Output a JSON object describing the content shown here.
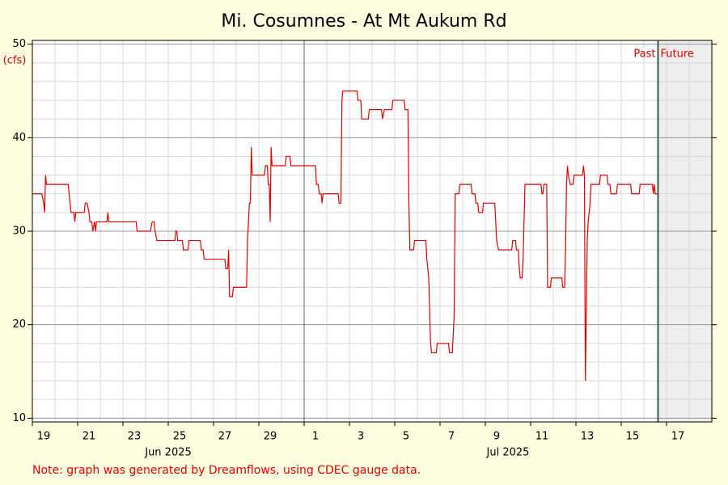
{
  "chart_data": {
    "type": "line",
    "title": "Mi. Cosumnes - At Mt Aukum Rd",
    "y_label": "(cfs)",
    "note": "Note: graph was generated by Dreamflows, using CDEC gauge data.",
    "color": "#e00000",
    "grid": true,
    "ylim": [
      9.6,
      50.4
    ],
    "yticks": [
      10,
      20,
      30,
      40,
      50
    ],
    "xlim": [
      "2025-06-19T00:00",
      "2025-07-19T00:00"
    ],
    "xticks": [
      {
        "value": "2025-06-19",
        "label": "19"
      },
      {
        "value": "2025-06-21",
        "label": "21"
      },
      {
        "value": "2025-06-23",
        "label": "23"
      },
      {
        "value": "2025-06-25",
        "label": "25"
      },
      {
        "value": "2025-06-27",
        "label": "27"
      },
      {
        "value": "2025-06-29",
        "label": "29"
      },
      {
        "value": "2025-07-01",
        "label": "1"
      },
      {
        "value": "2025-07-03",
        "label": "3"
      },
      {
        "value": "2025-07-05",
        "label": "5"
      },
      {
        "value": "2025-07-07",
        "label": "7"
      },
      {
        "value": "2025-07-09",
        "label": "9"
      },
      {
        "value": "2025-07-11",
        "label": "11"
      },
      {
        "value": "2025-07-13",
        "label": "13"
      },
      {
        "value": "2025-07-15",
        "label": "15"
      },
      {
        "value": "2025-07-17",
        "label": "17"
      }
    ],
    "month_labels": [
      {
        "value": "2025-06-25",
        "label": "Jun 2025"
      },
      {
        "value": "2025-07-10",
        "label": "Jul 2025"
      }
    ],
    "now": {
      "value": "2025-07-16T15:00",
      "past_label": "Past",
      "future_label": "Future"
    },
    "x": [
      "2025-06-19T00:00",
      "2025-06-19T10:00",
      "2025-06-19T12:00",
      "2025-06-19T13:00",
      "2025-06-19T14:00",
      "2025-06-19T15:00",
      "2025-06-20T14:00",
      "2025-06-20T15:00",
      "2025-06-20T17:00",
      "2025-06-20T20:00",
      "2025-06-20T21:00",
      "2025-06-20T22:00",
      "2025-06-21T07:00",
      "2025-06-21T08:00",
      "2025-06-21T10:00",
      "2025-06-21T12:00",
      "2025-06-21T13:00",
      "2025-06-21T15:00",
      "2025-06-21T16:00",
      "2025-06-21T18:00",
      "2025-06-21T19:00",
      "2025-06-21T20:00",
      "2025-06-22T07:00",
      "2025-06-22T08:00",
      "2025-06-22T09:00",
      "2025-06-23T14:00",
      "2025-06-23T15:00",
      "2025-06-24T05:00",
      "2025-06-24T07:00",
      "2025-06-24T09:00",
      "2025-06-24T10:00",
      "2025-06-24T12:00",
      "2025-06-25T07:00",
      "2025-06-25T08:00",
      "2025-06-25T09:00",
      "2025-06-25T10:00",
      "2025-06-25T15:00",
      "2025-06-25T16:00",
      "2025-06-25T21:00",
      "2025-06-25T22:00",
      "2025-06-26T10:00",
      "2025-06-26T11:00",
      "2025-06-26T13:00",
      "2025-06-26T14:00",
      "2025-06-27T12:00",
      "2025-06-27T13:00",
      "2025-06-27T15:00",
      "2025-06-27T16:00",
      "2025-06-27T17:00",
      "2025-06-27T20:00",
      "2025-06-27T21:00",
      "2025-06-28T11:00",
      "2025-06-28T12:00",
      "2025-06-28T14:00",
      "2025-06-28T15:00",
      "2025-06-28T16:00",
      "2025-06-28T17:00",
      "2025-06-29T06:00",
      "2025-06-29T07:00",
      "2025-06-29T09:00",
      "2025-06-29T10:00",
      "2025-06-29T11:00",
      "2025-06-29T12:00",
      "2025-06-29T13:00",
      "2025-06-29T14:00",
      "2025-06-30T04:00",
      "2025-06-30T05:00",
      "2025-06-30T09:00",
      "2025-06-30T10:00",
      "2025-07-01T12:00",
      "2025-07-01T13:00",
      "2025-07-01T15:00",
      "2025-07-01T16:00",
      "2025-07-01T18:00",
      "2025-07-01T19:00",
      "2025-07-01T20:00",
      "2025-07-02T12:00",
      "2025-07-02T13:00",
      "2025-07-02T15:00",
      "2025-07-02T16:00",
      "2025-07-02T17:00",
      "2025-07-03T08:00",
      "2025-07-03T09:00",
      "2025-07-03T12:00",
      "2025-07-03T13:00",
      "2025-07-03T20:00",
      "2025-07-03T21:00",
      "2025-07-04T10:00",
      "2025-07-04T11:00",
      "2025-07-04T13:00",
      "2025-07-04T21:00",
      "2025-07-04T22:00",
      "2025-07-05T10:00",
      "2025-07-05T11:00",
      "2025-07-05T14:00",
      "2025-07-05T15:00",
      "2025-07-05T16:00",
      "2025-07-05T20:00",
      "2025-07-05T21:00",
      "2025-07-06T09:00",
      "2025-07-06T10:00",
      "2025-07-06T12:00",
      "2025-07-06T14:00",
      "2025-07-06T15:00",
      "2025-07-06T20:00",
      "2025-07-06T21:00",
      "2025-07-07T09:00",
      "2025-07-07T10:00",
      "2025-07-07T13:00",
      "2025-07-07T15:00",
      "2025-07-07T16:00",
      "2025-07-07T20:00",
      "2025-07-07T21:00",
      "2025-07-08T09:00",
      "2025-07-08T10:00",
      "2025-07-08T13:00",
      "2025-07-08T14:00",
      "2025-07-08T16:00",
      "2025-07-08T17:00",
      "2025-07-08T21:00",
      "2025-07-08T22:00",
      "2025-07-09T10:00",
      "2025-07-09T11:00",
      "2025-07-09T12:00",
      "2025-07-09T14:00",
      "2025-07-10T04:00",
      "2025-07-10T05:00",
      "2025-07-10T08:00",
      "2025-07-10T09:00",
      "2025-07-10T11:00",
      "2025-07-10T12:00",
      "2025-07-10T13:00",
      "2025-07-10T15:00",
      "2025-07-10T16:00",
      "2025-07-10T17:00",
      "2025-07-10T18:00",
      "2025-07-11T11:00",
      "2025-07-11T12:00",
      "2025-07-11T13:00",
      "2025-07-11T14:00",
      "2025-07-11T17:00",
      "2025-07-11T18:00",
      "2025-07-11T21:00",
      "2025-07-11T22:00",
      "2025-07-12T09:00",
      "2025-07-12T10:00",
      "2025-07-12T12:00",
      "2025-07-12T13:00",
      "2025-07-12T14:00",
      "2025-07-12T15:00",
      "2025-07-12T16:00",
      "2025-07-12T18:00",
      "2025-07-12T21:00",
      "2025-07-12T22:00",
      "2025-07-13T07:00",
      "2025-07-13T08:00",
      "2025-07-13T09:00",
      "2025-07-13T10:00",
      "2025-07-13T12:00",
      "2025-07-13T13:00",
      "2025-07-13T15:00",
      "2025-07-13T16:00",
      "2025-07-14T01:00",
      "2025-07-14T02:00",
      "2025-07-14T09:00",
      "2025-07-14T10:00",
      "2025-07-14T12:00",
      "2025-07-14T13:00",
      "2025-07-14T19:00",
      "2025-07-14T20:00",
      "2025-07-15T10:00",
      "2025-07-15T11:00",
      "2025-07-15T19:00",
      "2025-07-15T20:00",
      "2025-07-16T09:00",
      "2025-07-16T10:00",
      "2025-07-16T11:00",
      "2025-07-16T12:00",
      "2025-07-16T15:00"
    ],
    "values": [
      34,
      34,
      33,
      32,
      36,
      35,
      35,
      34,
      32,
      32,
      31,
      32,
      32,
      33,
      33,
      32,
      31,
      31,
      30,
      31,
      30,
      31,
      31,
      32,
      31,
      31,
      30,
      30,
      31,
      31,
      30,
      29,
      29,
      30,
      30,
      29,
      29,
      28,
      28,
      29,
      29,
      28,
      28,
      27,
      27,
      26,
      26,
      28,
      23,
      23,
      24,
      24,
      29,
      33,
      33,
      39,
      36,
      36,
      37,
      37,
      35,
      35,
      31,
      39,
      37,
      37,
      38,
      38,
      37,
      37,
      35,
      35,
      34,
      34,
      33,
      34,
      34,
      33,
      33,
      44,
      45,
      45,
      44,
      44,
      42,
      42,
      43,
      43,
      42,
      43,
      43,
      44,
      44,
      43,
      43,
      33,
      28,
      28,
      29,
      29,
      27,
      25,
      18,
      17,
      17,
      18,
      18,
      17,
      17,
      21,
      34,
      34,
      35,
      35,
      34,
      34,
      33,
      33,
      32,
      32,
      33,
      33,
      31,
      29,
      28,
      28,
      29,
      29,
      28,
      28,
      26,
      25,
      25,
      27,
      31,
      35,
      35,
      34,
      34,
      35,
      35,
      24,
      24,
      25,
      25,
      24,
      24,
      28,
      35,
      37,
      36,
      35,
      35,
      36,
      36,
      37,
      36,
      14,
      29,
      31,
      33,
      35,
      35,
      36,
      36,
      35,
      35,
      34,
      34,
      35,
      35,
      34,
      34,
      35,
      35,
      34,
      35,
      34,
      34
    ]
  }
}
